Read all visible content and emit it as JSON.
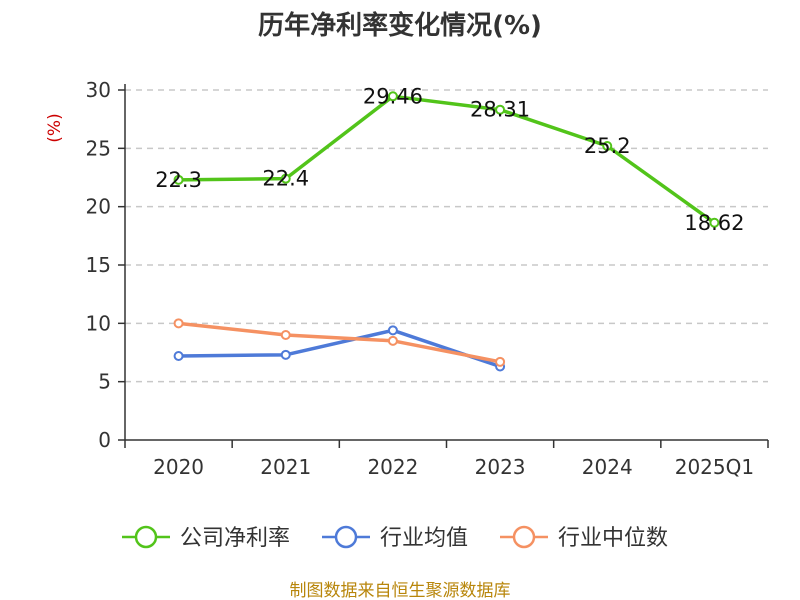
{
  "title": "历年净利率变化情况(%)",
  "unit_label": "(%)",
  "source": "制图数据来自恒生聚源数据库",
  "chart_data": {
    "type": "line",
    "categories": [
      "2020",
      "2021",
      "2022",
      "2023",
      "2024",
      "2025Q1"
    ],
    "ylim": [
      0,
      30
    ],
    "yticks": [
      0,
      5,
      10,
      15,
      20,
      25,
      30
    ],
    "grid": true,
    "legend_position": "bottom",
    "series": [
      {
        "name": "公司净利率",
        "color": "#52c41a",
        "values": [
          22.3,
          22.4,
          29.46,
          28.31,
          25.2,
          18.62
        ],
        "labels": [
          "22.3",
          "22.4",
          "29.46",
          "28.31",
          "25.2",
          "18.62"
        ]
      },
      {
        "name": "行业均值",
        "color": "#4e7ad8",
        "values": [
          7.2,
          7.3,
          9.4,
          6.3,
          null,
          null
        ]
      },
      {
        "name": "行业中位数",
        "color": "#f59162",
        "values": [
          10.0,
          9.0,
          8.5,
          6.7,
          null,
          null
        ]
      }
    ]
  }
}
